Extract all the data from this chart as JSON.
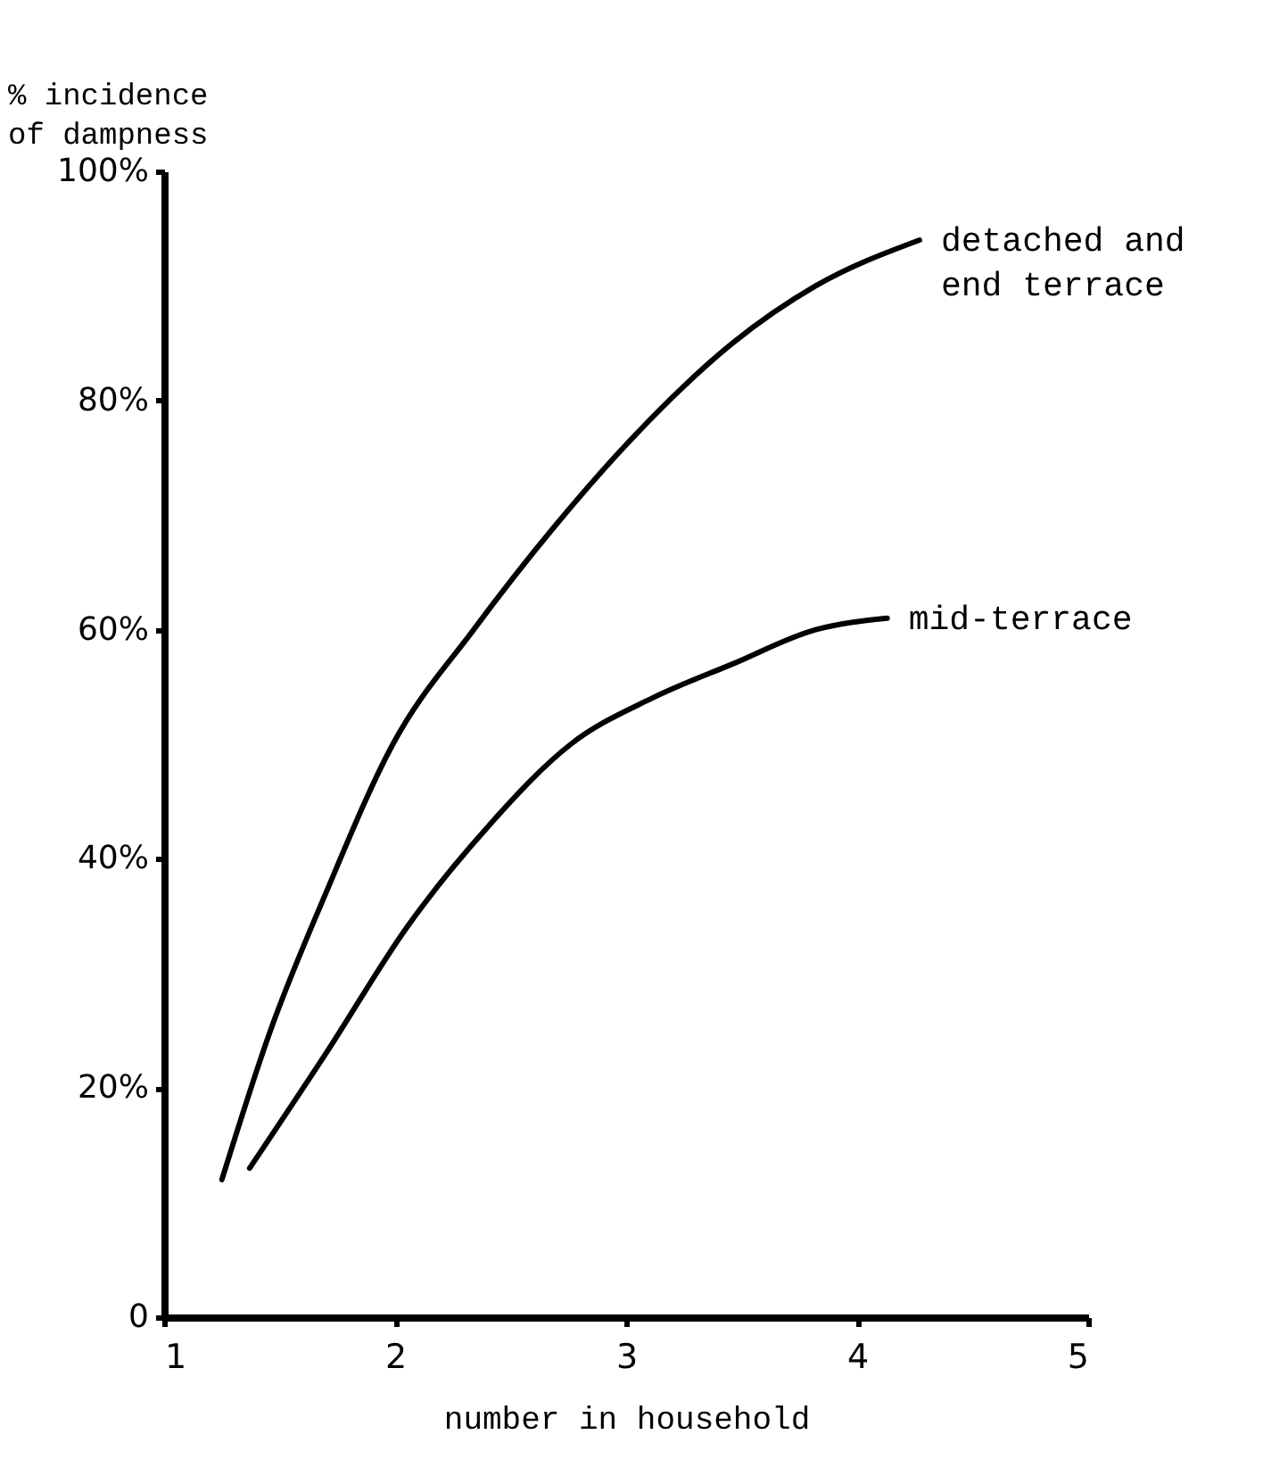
{
  "chart_data": {
    "type": "line",
    "xlabel": "number in household",
    "ylabel": "% incidence of dampness",
    "x": [
      1.25,
      1.46,
      1.7,
      1.99,
      2.34,
      2.69,
      3.04,
      3.46,
      3.82,
      4.27
    ],
    "xlim": [
      1,
      5
    ],
    "xticks": [
      1,
      2,
      3,
      4,
      5
    ],
    "ylim": [
      0,
      100
    ],
    "yticks": [
      {
        "value": 0,
        "label": "0"
      },
      {
        "value": 20,
        "label": "20%"
      },
      {
        "value": 40,
        "label": "40%"
      },
      {
        "value": 60,
        "label": "60%"
      },
      {
        "value": 80,
        "label": "80%"
      },
      {
        "value": 100,
        "label": "100%"
      }
    ],
    "series": [
      {
        "name": "detached and end terrace",
        "color": "#000000",
        "values": [
          12,
          25,
          37,
          50,
          60,
          69,
          77,
          85,
          90,
          94
        ]
      },
      {
        "name": "mid-terrace",
        "color": "#000000",
        "x": [
          1.37,
          1.7,
          2.05,
          2.41,
          2.76,
          3.11,
          3.46,
          3.82,
          4.13
        ],
        "values": [
          13,
          23,
          34,
          43,
          50,
          54,
          57,
          60,
          61
        ]
      }
    ],
    "grid": false,
    "line_style": "solid"
  }
}
